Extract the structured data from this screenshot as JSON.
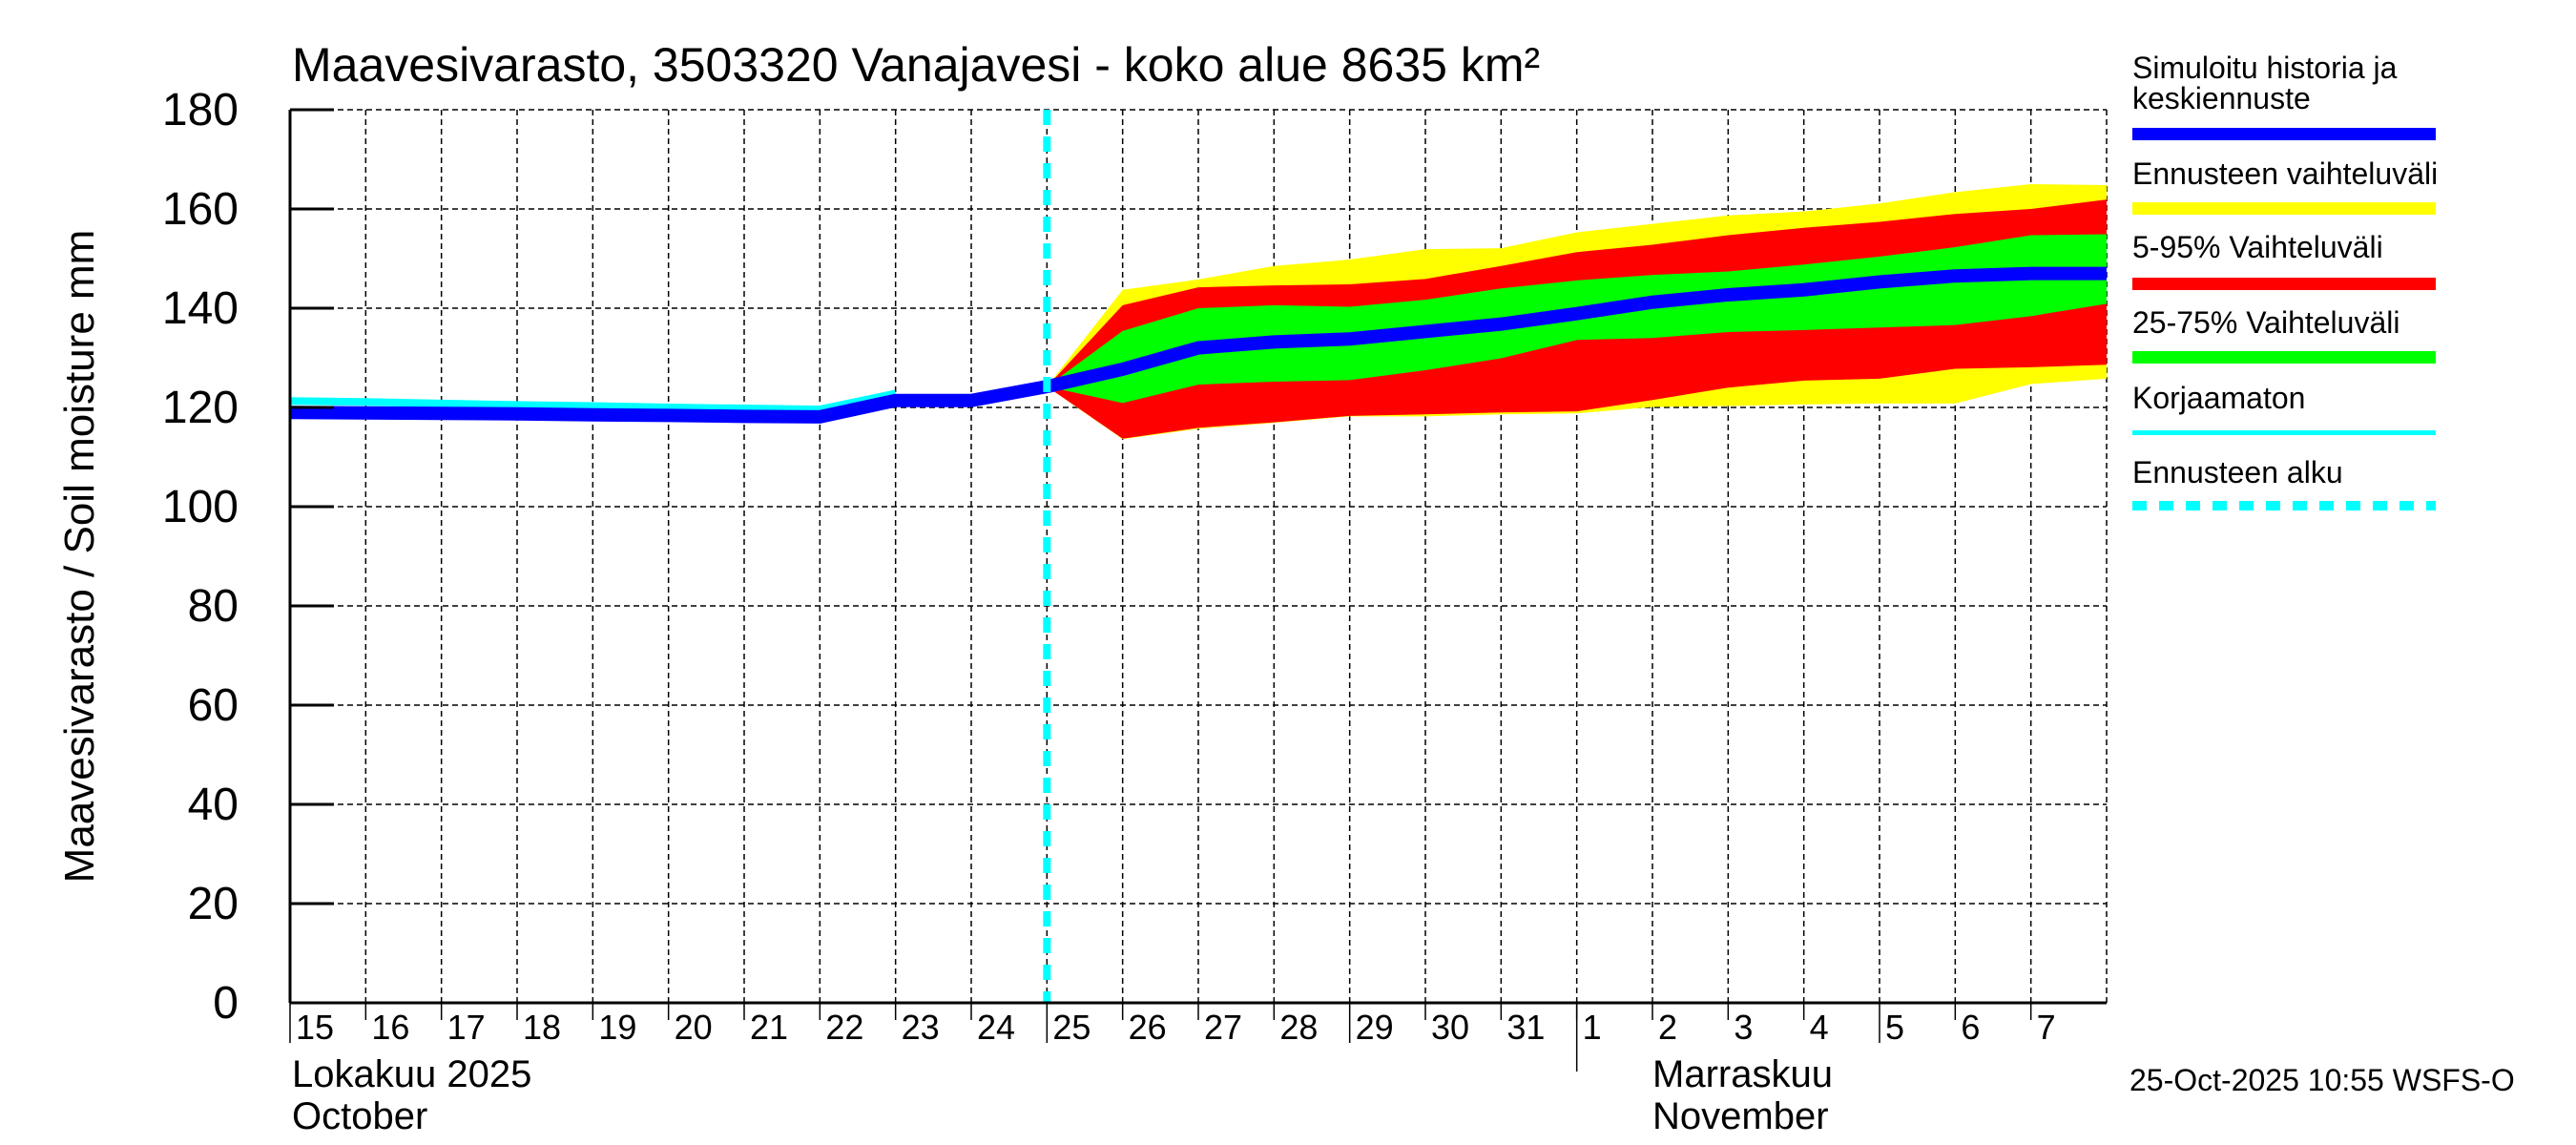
{
  "chart_data": {
    "type": "area",
    "title": "Maavesivarasto, 3503320 Vanajavesi - koko alue 8635 km²",
    "ylabel": "Maavesivarasto / Soil moisture   mm",
    "xlabel": "",
    "ylim": [
      0,
      180
    ],
    "yticks": [
      0,
      20,
      40,
      60,
      80,
      100,
      120,
      140,
      160,
      180
    ],
    "grid": true,
    "legend_position": "right",
    "x_start_date": "2025-10-15",
    "x_end_day_index": 24,
    "x_tick_labels": [
      "15",
      "16",
      "17",
      "18",
      "19",
      "20",
      "21",
      "22",
      "23",
      "24",
      "25",
      "26",
      "27",
      "28",
      "29",
      "30",
      "31",
      "1",
      "2",
      "3",
      "4",
      "5",
      "6",
      "7"
    ],
    "month_labels": [
      {
        "line1": "Lokakuu   2025",
        "line2": "October",
        "start_index": 0
      },
      {
        "line1": "Marraskuu",
        "line2": "November",
        "start_index": 17
      }
    ],
    "forecast_start_index": 10,
    "history": {
      "name": "Simuloitu historia ja keskiennuste",
      "x_index": [
        0,
        1,
        2,
        3,
        4,
        5,
        6,
        7,
        8,
        9,
        10
      ],
      "values": [
        119.0,
        118.9,
        118.8,
        118.7,
        118.5,
        118.4,
        118.2,
        118.1,
        121.4,
        121.4,
        124.2
      ]
    },
    "uncorrected": {
      "name": "Korjaamaton",
      "x_index": [
        0,
        1,
        2,
        3,
        4,
        5,
        6,
        7,
        8
      ],
      "values": [
        121.3,
        121.1,
        120.8,
        120.5,
        120.3,
        120.0,
        119.8,
        119.6,
        122.8
      ]
    },
    "forecast": {
      "x_index": [
        10,
        11,
        12,
        13,
        14,
        15,
        16,
        17,
        18,
        19,
        20,
        21,
        22,
        23,
        24
      ],
      "mean": [
        124.2,
        127.7,
        132.0,
        133.2,
        133.8,
        135.3,
        136.8,
        138.9,
        141.2,
        142.7,
        143.7,
        145.3,
        146.5,
        147.0,
        147.0
      ],
      "min": [
        124.2,
        113.6,
        115.7,
        116.9,
        118.2,
        118.2,
        118.6,
        118.8,
        120.1,
        120.3,
        120.6,
        120.8,
        120.8,
        124.7,
        125.8
      ],
      "max": [
        124.2,
        143.7,
        145.8,
        148.5,
        149.8,
        151.9,
        152.1,
        155.3,
        157.0,
        158.7,
        159.5,
        161.1,
        163.4,
        165.0,
        164.8
      ],
      "p5": [
        124.2,
        113.7,
        115.9,
        117.0,
        118.3,
        118.6,
        119.0,
        119.2,
        121.5,
        124.0,
        125.4,
        125.8,
        127.8,
        128.1,
        128.6
      ],
      "p95": [
        124.2,
        140.6,
        144.2,
        144.6,
        144.8,
        145.9,
        148.5,
        151.3,
        152.8,
        154.7,
        156.2,
        157.4,
        159.0,
        160.0,
        161.9
      ],
      "p25": [
        124.2,
        120.9,
        124.6,
        125.2,
        125.5,
        127.5,
        129.9,
        133.6,
        134.0,
        135.2,
        135.6,
        136.1,
        136.6,
        138.4,
        140.9
      ],
      "p75": [
        124.2,
        135.4,
        140.0,
        140.6,
        140.3,
        141.7,
        144.0,
        145.6,
        146.7,
        147.4,
        148.8,
        150.4,
        152.3,
        154.7,
        154.9
      ]
    },
    "legend": [
      {
        "label": "Simuloitu historia ja keskiennuste",
        "color": "#0000ff",
        "style": "thick"
      },
      {
        "label": "Ennusteen vaihteluväli",
        "color": "#ffff00",
        "style": "thick"
      },
      {
        "label": "5-95% Vaihteluväli",
        "color": "#ff0000",
        "style": "thick"
      },
      {
        "label": "25-75% Vaihteluväli",
        "color": "#00ff00",
        "style": "thick"
      },
      {
        "label": "Korjaamaton",
        "color": "#00ffff",
        "style": "thin"
      },
      {
        "label": "Ennusteen alku",
        "color": "#00ffff",
        "style": "dashed"
      }
    ],
    "colors": {
      "mean": "#0000ff",
      "range": "#ffff00",
      "p5_95": "#ff0000",
      "p25_75": "#00ff00",
      "uncorrected": "#00ffff",
      "forecast_start": "#00ffff"
    },
    "timestamp": "25-Oct-2025 10:55 WSFS-O"
  }
}
